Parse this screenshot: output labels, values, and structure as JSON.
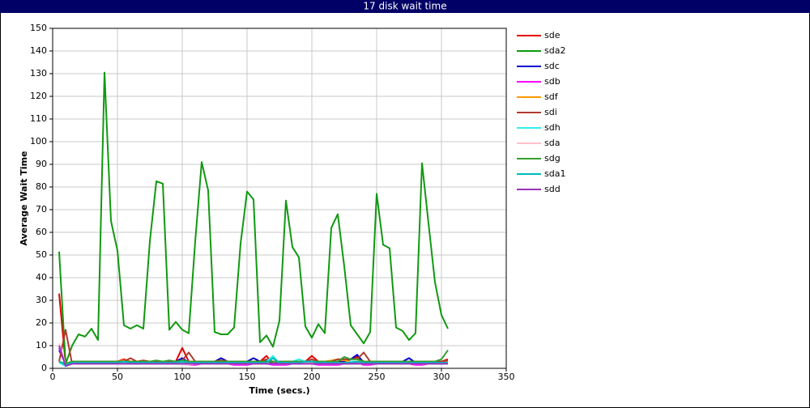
{
  "chart_data": {
    "type": "line",
    "title": "17 disk wait time",
    "xlabel": "Time (secs.)",
    "ylabel": "Average Wait Time",
    "xlim": [
      0,
      350
    ],
    "xticks": [
      0,
      50,
      100,
      150,
      200,
      250,
      300,
      350
    ],
    "ylim": [
      0,
      150
    ],
    "yticks": [
      0,
      10,
      20,
      30,
      40,
      50,
      60,
      70,
      80,
      90,
      100,
      110,
      120,
      130,
      140,
      150
    ],
    "grid": true,
    "legend": "right",
    "x": [
      5,
      10,
      15,
      20,
      25,
      30,
      35,
      40,
      45,
      50,
      55,
      60,
      65,
      70,
      75,
      80,
      85,
      90,
      95,
      100,
      105,
      110,
      115,
      120,
      125,
      130,
      135,
      140,
      145,
      150,
      155,
      160,
      165,
      170,
      175,
      180,
      185,
      190,
      195,
      200,
      205,
      210,
      215,
      220,
      225,
      230,
      235,
      240,
      245,
      250,
      255,
      260,
      265,
      270,
      275,
      280,
      285,
      290,
      295,
      300,
      305
    ],
    "series": [
      {
        "name": "sde",
        "color": "#e60000",
        "values": [
          33,
          2,
          3,
          3,
          3,
          3,
          3,
          3,
          3,
          3,
          4,
          3,
          3,
          3,
          3,
          3,
          3,
          3,
          3,
          9,
          3,
          3,
          3,
          3,
          3,
          3,
          3,
          3,
          3,
          3,
          3,
          3,
          5.5,
          2,
          2,
          3,
          3,
          3,
          3,
          5.5,
          3,
          3,
          3,
          3,
          3,
          4,
          5,
          3,
          3,
          3,
          3,
          3,
          3,
          3,
          3,
          3,
          3,
          3,
          3,
          3,
          4
        ]
      },
      {
        "name": "sda2",
        "color": "#119911",
        "values": [
          51.5,
          2,
          10,
          15,
          14,
          17.5,
          12.5,
          130.5,
          65,
          52,
          19,
          17.5,
          19,
          17.5,
          56,
          82.5,
          81.5,
          17,
          20.5,
          17,
          15.5,
          56,
          91,
          78.5,
          16,
          15,
          15,
          18,
          55,
          78,
          74.5,
          11.5,
          14.5,
          9.5,
          21,
          74,
          53.5,
          49,
          18.5,
          13.5,
          19.5,
          15.5,
          62,
          68,
          45,
          19,
          15,
          11,
          16,
          77,
          54.5,
          53,
          18,
          16.5,
          12.5,
          15.5,
          90.5,
          64,
          38,
          23.5,
          17.5
        ]
      },
      {
        "name": "sdc",
        "color": "#0000cc",
        "values": [
          8,
          2,
          2.5,
          2.5,
          3,
          2.5,
          2.5,
          2.5,
          2.5,
          2.5,
          3,
          2.5,
          2.5,
          2.5,
          2.5,
          2.5,
          2.5,
          2.5,
          3,
          4.5,
          2.5,
          2.5,
          2.5,
          3,
          3,
          4.5,
          3,
          2.5,
          2.5,
          3,
          4.5,
          3,
          3.5,
          2,
          2.5,
          2.5,
          2.5,
          3,
          3,
          3,
          3,
          2.5,
          2.5,
          2.5,
          3,
          4,
          6,
          2.5,
          2.5,
          2.5,
          3,
          3,
          3,
          3,
          4.5,
          2.5,
          2.5,
          3,
          3,
          3,
          3
        ]
      },
      {
        "name": "sdb",
        "color": "#ff00ff",
        "values": [
          9,
          1.5,
          2,
          2,
          2,
          2,
          2,
          2,
          2,
          2,
          2.5,
          2,
          2,
          2,
          2,
          2,
          2,
          2,
          2,
          2,
          1.5,
          1.5,
          2,
          2,
          2.5,
          3,
          2,
          1.5,
          1.5,
          1.5,
          2,
          2,
          2,
          1.5,
          1.5,
          1.5,
          2,
          2,
          2,
          2,
          1.5,
          1.5,
          1.5,
          1.5,
          2,
          2,
          2.5,
          1.5,
          1.5,
          2,
          2,
          2,
          2,
          2,
          2,
          1.5,
          1.5,
          2,
          2,
          2,
          2
        ]
      },
      {
        "name": "sdf",
        "color": "#ff9900",
        "values": [
          3,
          2,
          3,
          3,
          3,
          3,
          3,
          3,
          3,
          3,
          3.5,
          3,
          3,
          3,
          3,
          3,
          3,
          3,
          3,
          3,
          3,
          3,
          3,
          3,
          3,
          3.5,
          3,
          3,
          3,
          3,
          3,
          3,
          3,
          3,
          3,
          3,
          3,
          3,
          3,
          3,
          3,
          3,
          3.5,
          4,
          3.5,
          3,
          3,
          3,
          3,
          3,
          3,
          3,
          3,
          3,
          3,
          3,
          3,
          3,
          3,
          3,
          3
        ]
      },
      {
        "name": "sdi",
        "color": "#b03a2e",
        "values": [
          3,
          17,
          2,
          3,
          3,
          3,
          3,
          3,
          3,
          3,
          3,
          4.5,
          3,
          3.5,
          3,
          3,
          3,
          3,
          3,
          3.5,
          7,
          3,
          3,
          3,
          3,
          3.5,
          3,
          3,
          3,
          3,
          3,
          3,
          4,
          3,
          3,
          3,
          3,
          3,
          3,
          4,
          3,
          3,
          3,
          4,
          4,
          4,
          4,
          7,
          3,
          3,
          3,
          3,
          3,
          3,
          3,
          3,
          3,
          3,
          3,
          3,
          3.5
        ]
      },
      {
        "name": "sdh",
        "color": "#33eeee",
        "values": [
          2.5,
          1,
          2,
          2,
          2,
          2,
          2,
          2,
          2,
          2,
          2.5,
          2,
          2,
          2,
          2,
          2,
          2,
          2,
          2,
          2.5,
          2,
          2,
          2,
          2,
          2.5,
          2.5,
          2,
          2,
          2,
          2,
          2.5,
          2,
          3,
          5.5,
          2,
          2,
          3,
          4,
          3,
          3,
          2,
          2,
          2,
          2,
          2,
          3,
          3,
          2,
          2,
          2,
          2,
          2,
          2,
          2,
          2,
          2,
          2,
          2,
          2,
          2,
          2
        ]
      },
      {
        "name": "sda",
        "color": "#ffc0cb",
        "values": [
          11,
          1.5,
          2,
          2,
          2,
          2,
          2,
          2,
          2,
          2,
          2,
          2,
          2,
          2,
          2,
          2,
          2,
          2,
          2,
          2,
          1.5,
          2,
          2,
          2,
          2,
          2,
          2,
          2,
          2,
          2,
          2,
          2,
          2,
          2,
          2,
          2,
          2,
          2,
          2,
          2,
          2,
          2,
          2,
          2,
          2,
          2,
          2,
          2,
          2,
          2,
          2,
          2,
          2,
          2,
          2,
          2,
          2,
          2,
          2,
          2,
          2
        ]
      },
      {
        "name": "sdg",
        "color": "#33a02c",
        "values": [
          3,
          2,
          3,
          3,
          3,
          3,
          3,
          3,
          3,
          3,
          3,
          3,
          3,
          3,
          3,
          3.5,
          3,
          3.5,
          3,
          3.5,
          3,
          3,
          3,
          3,
          3,
          3,
          3,
          3,
          3,
          3,
          3,
          3,
          3,
          3,
          3,
          3,
          3,
          3,
          3,
          3,
          3,
          3,
          3,
          3,
          5,
          4,
          4,
          3,
          3,
          3,
          3,
          3,
          3,
          3,
          3,
          3,
          3,
          3,
          3,
          4,
          8
        ]
      },
      {
        "name": "sda1",
        "color": "#00bbbb",
        "values": [
          3,
          1.5,
          2.5,
          2.5,
          2.5,
          2.5,
          2.5,
          2.5,
          2.5,
          2.5,
          3,
          2.5,
          2.5,
          2.5,
          2.5,
          2.5,
          2.5,
          2.5,
          2.5,
          3,
          2.5,
          2.5,
          2.5,
          2.5,
          2.5,
          2.5,
          2.5,
          2.5,
          2.5,
          2.5,
          2.5,
          2.5,
          2.5,
          4.5,
          2.5,
          2.5,
          2.5,
          2.5,
          3,
          3,
          2.5,
          2.5,
          2.5,
          2.5,
          2.5,
          2.5,
          3,
          2.5,
          2.5,
          2.5,
          2.5,
          2.5,
          2.5,
          2.5,
          2.5,
          2.5,
          2.5,
          2.5,
          2.5,
          2.5,
          2.5
        ]
      },
      {
        "name": "sdd",
        "color": "#9933bb",
        "values": [
          10,
          1,
          2,
          2,
          2,
          2,
          2,
          2,
          2,
          2,
          2,
          2,
          2,
          2,
          2,
          2,
          2,
          2,
          2,
          2,
          2,
          2,
          2,
          2,
          2,
          2,
          2,
          2,
          2,
          2,
          2,
          2,
          2,
          2,
          2,
          2,
          2,
          2,
          2,
          2,
          2,
          2,
          2,
          2,
          2,
          2,
          2,
          2,
          2,
          2,
          2,
          2,
          2,
          2,
          2,
          2,
          2,
          2,
          2,
          2,
          2
        ]
      }
    ]
  }
}
